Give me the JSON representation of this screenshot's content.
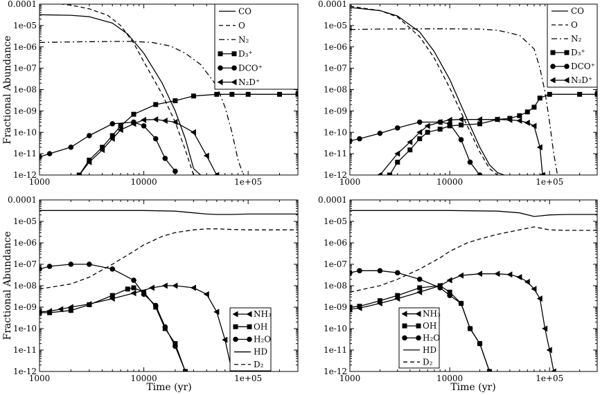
{
  "chart_data": [
    {
      "type": "line",
      "panel": "top-left",
      "xscale": "log",
      "yscale": "log",
      "xlim": [
        1000,
        300000
      ],
      "ylim": [
        1e-12,
        0.0001
      ],
      "xticklabels": [
        "1000",
        "10000",
        "1e+05"
      ],
      "yticklabels": [
        "1e-12",
        "1e-11",
        "1e-10",
        "1e-09",
        "1e-08",
        "1e-07",
        "1e-06",
        "1e-05",
        "0.0001"
      ],
      "xlabel": "",
      "ylabel": "Fractional Abundance",
      "legend_position": "top-right",
      "series": [
        {
          "name": "CO",
          "style": "solid",
          "marker": "none",
          "x": [
            1000,
            2000,
            3000,
            5000,
            7000,
            10000,
            15000,
            20000,
            25000,
            30000,
            35000
          ],
          "y": [
            3.2e-05,
            3e-05,
            2.6e-05,
            1.3e-05,
            4e-06,
            5e-07,
            2e-08,
            1e-09,
            5e-11,
            2e-12,
            1e-12
          ]
        },
        {
          "name": "O",
          "style": "dashed",
          "marker": "none",
          "x": [
            1000,
            2000,
            3000,
            4500,
            6000,
            8000,
            10000,
            15000,
            20000,
            25000,
            30000
          ],
          "y": [
            0.00013,
            9e-05,
            6e-05,
            3e-05,
            1e-05,
            1.5e-06,
            2e-07,
            6e-09,
            3e-10,
            1.5e-11,
            1e-12
          ]
        },
        {
          "name": "N₂",
          "style": "dashdot",
          "marker": "none",
          "x": [
            1000,
            2000,
            5000,
            8000,
            12000,
            18000,
            25000,
            35000,
            50000,
            60000,
            70000,
            80000,
            90000
          ],
          "y": [
            1.6e-06,
            1.7e-06,
            1.8e-06,
            1.8e-06,
            1.6e-06,
            1.1e-06,
            5e-07,
            1.5e-07,
            1.5e-08,
            1.5e-09,
            1e-10,
            5e-12,
            1e-12
          ]
        },
        {
          "name": "D₃⁺",
          "style": "solid",
          "marker": "square",
          "x": [
            2400,
            3000,
            4000,
            5000,
            6000,
            8000,
            13000,
            20000,
            30000,
            50000,
            70000,
            100000,
            200000,
            300000
          ],
          "y": [
            1e-12,
            5e-12,
            2e-11,
            7e-11,
            2e-10,
            7e-10,
            2e-09,
            3e-09,
            5e-09,
            6e-09,
            6e-09,
            6e-09,
            6e-09,
            6e-09
          ]
        },
        {
          "name": "DCO⁺",
          "style": "solid",
          "marker": "circle",
          "x": [
            1000,
            1250,
            2000,
            3000,
            5000,
            8000,
            10000,
            13000,
            16000,
            20000
          ],
          "y": [
            7e-12,
            1e-11,
            2e-11,
            7e-11,
            2.5e-10,
            3e-10,
            2e-10,
            5e-11,
            6e-12,
            1.5e-12
          ]
        },
        {
          "name": "N₂D⁺",
          "style": "solid",
          "marker": "triangle-left",
          "x": [
            2400,
            3000,
            4000,
            5000,
            6000,
            8000,
            10000,
            13000,
            16000,
            20000,
            30000,
            40000,
            50000
          ],
          "y": [
            1e-12,
            4e-12,
            1.5e-11,
            5e-11,
            1.3e-10,
            2.5e-10,
            3.8e-10,
            4e-10,
            3.5e-10,
            3e-10,
            1e-10,
            8e-12,
            1e-12
          ]
        }
      ]
    },
    {
      "type": "line",
      "panel": "top-right",
      "xscale": "log",
      "yscale": "log",
      "xlim": [
        1000,
        300000
      ],
      "ylim": [
        1e-12,
        0.0001
      ],
      "xticklabels": [
        "1000",
        "10000",
        "1e+05"
      ],
      "yticklabels": [
        "1e-12",
        "1e-11",
        "1e-10",
        "1e-09",
        "1e-08",
        "1e-07",
        "1e-06",
        "1e-05",
        "0.0001"
      ],
      "xlabel": "",
      "ylabel": "",
      "legend_position": "top-right",
      "series": [
        {
          "name": "CO",
          "style": "solid",
          "marker": "none",
          "x": [
            1000,
            2000,
            3000,
            5000,
            7000,
            10000,
            15000,
            20000,
            25000,
            30000,
            35000
          ],
          "y": [
            7e-05,
            5e-05,
            2.8e-05,
            5e-06,
            6e-07,
            3e-08,
            4e-10,
            2e-11,
            3e-12,
            1.3e-12,
            1e-12
          ]
        },
        {
          "name": "O",
          "style": "dashed",
          "marker": "none",
          "x": [
            1000,
            2000,
            3000,
            5000,
            7000,
            10000,
            15000,
            20000,
            25000,
            30000
          ],
          "y": [
            8e-05,
            5e-05,
            2.5e-05,
            3e-06,
            3e-07,
            1.2e-08,
            2e-10,
            1.2e-11,
            2e-12,
            1e-12
          ]
        },
        {
          "name": "N₂",
          "style": "dashdot",
          "marker": "none",
          "x": [
            1000,
            2000,
            5000,
            10000,
            20000,
            30000,
            50000,
            70000,
            80000,
            90000,
            100000,
            110000,
            120000
          ],
          "y": [
            6.5e-06,
            6.8e-06,
            7e-06,
            7e-06,
            6.8e-06,
            6e-06,
            3.5e-06,
            8e-07,
            1e-07,
            8e-09,
            3e-10,
            1e-11,
            1e-12
          ]
        },
        {
          "name": "D₃⁺",
          "style": "solid",
          "marker": "square",
          "x": [
            2500,
            3000,
            4000,
            5000,
            6000,
            8000,
            10000,
            13000,
            20000,
            30000,
            40000,
            50000,
            60000,
            70000,
            80000,
            100000,
            200000,
            300000
          ],
          "y": [
            1e-12,
            4e-12,
            1.5e-11,
            5e-11,
            1e-10,
            1.4e-10,
            2e-10,
            2.2e-10,
            2.5e-10,
            4e-10,
            4.5e-10,
            6e-10,
            9e-10,
            1.5e-09,
            4e-09,
            6e-09,
            6e-09,
            6e-09
          ]
        },
        {
          "name": "DCO⁺",
          "style": "solid",
          "marker": "circle",
          "x": [
            1000,
            1250,
            2000,
            3000,
            5000,
            8000,
            10000,
            13000,
            16000,
            20000
          ],
          "y": [
            4e-11,
            5e-11,
            9e-11,
            1.6e-10,
            3e-10,
            3e-10,
            2.5e-10,
            4.5e-11,
            4e-12,
            1e-12
          ]
        },
        {
          "name": "N₂D⁺",
          "style": "solid",
          "marker": "triangle-left",
          "x": [
            2000,
            3000,
            4000,
            5000,
            6000,
            8000,
            10000,
            13000,
            20000,
            30000,
            40000,
            50000,
            60000,
            70000,
            80000,
            85000
          ],
          "y": [
            1e-12,
            1e-11,
            3.5e-11,
            1e-10,
            2e-10,
            3e-10,
            3.8e-10,
            4e-10,
            4e-10,
            4e-10,
            3.8e-10,
            3.5e-10,
            2.8e-10,
            2e-10,
            2e-11,
            1e-12
          ]
        }
      ]
    },
    {
      "type": "line",
      "panel": "bottom-left",
      "xscale": "log",
      "yscale": "log",
      "xlim": [
        1000,
        300000
      ],
      "ylim": [
        1e-12,
        0.0001
      ],
      "xticklabels": [
        "1000",
        "10000",
        "1e+05"
      ],
      "yticklabels": [
        "1e-12",
        "1e-11",
        "1e-10",
        "1e-09",
        "1e-08",
        "1e-07",
        "1e-06",
        "1e-05",
        "0.0001"
      ],
      "xlabel": "Time (yr)",
      "ylabel": "Fractional Abundance",
      "legend_position": "bottom-right",
      "series": [
        {
          "name": "NH₃",
          "style": "solid",
          "marker": "triangle-left",
          "x": [
            1000,
            1250,
            1600,
            2000,
            3000,
            5000,
            8000,
            12000,
            16000,
            20000,
            30000,
            40000,
            50000,
            60000,
            70000,
            80000
          ],
          "y": [
            6e-10,
            6.5e-10,
            8e-10,
            1e-09,
            1.4e-09,
            2.5e-09,
            4.5e-09,
            8e-09,
            1e-08,
            1e-08,
            8e-09,
            4e-09,
            6e-10,
            3e-11,
            1e-12,
            1e-12
          ]
        },
        {
          "name": "OH",
          "style": "solid",
          "marker": "square",
          "x": [
            1000,
            1250,
            2000,
            3000,
            5000,
            7000,
            8000,
            10000,
            13000,
            16000,
            20000,
            25000
          ],
          "y": [
            5.5e-10,
            5.5e-10,
            7e-10,
            1.3e-09,
            3.5e-09,
            7e-09,
            8e-09,
            5e-09,
            1e-09,
            1e-10,
            2e-11,
            1e-12
          ]
        },
        {
          "name": "H₂O",
          "style": "solid",
          "marker": "circle",
          "x": [
            1000,
            1250,
            2000,
            3000,
            5000,
            8000,
            10000,
            13000,
            16000,
            20000,
            25000
          ],
          "y": [
            6e-08,
            8e-08,
            1e-07,
            1e-07,
            6e-08,
            1.8e-08,
            4e-09,
            1.2e-09,
            1.2e-10,
            1.5e-11,
            1e-12
          ]
        },
        {
          "name": "HD",
          "style": "solid",
          "marker": "none",
          "x": [
            1000,
            10000,
            20000,
            30000,
            40000,
            50000,
            70000,
            100000,
            300000
          ],
          "y": [
            3.2e-05,
            3.2e-05,
            3e-05,
            2.5e-05,
            2.2e-05,
            2.1e-05,
            2.1e-05,
            2.2e-05,
            2.2e-05
          ]
        },
        {
          "name": "D₂",
          "style": "dashed",
          "marker": "none",
          "x": [
            1000,
            2000,
            3000,
            5000,
            8000,
            10000,
            15000,
            20000,
            30000,
            40000,
            50000,
            70000,
            100000,
            300000
          ],
          "y": [
            7e-09,
            1.2e-08,
            2.5e-08,
            1e-07,
            4e-07,
            8e-07,
            2e-06,
            3e-06,
            4e-06,
            4.5e-06,
            4.5e-06,
            4.2e-06,
            4e-06,
            4e-06
          ]
        }
      ]
    },
    {
      "type": "line",
      "panel": "bottom-right",
      "xscale": "log",
      "yscale": "log",
      "xlim": [
        1000,
        300000
      ],
      "ylim": [
        1e-12,
        0.0001
      ],
      "xticklabels": [
        "1000",
        "10000",
        "1e+05"
      ],
      "yticklabels": [
        "1e-12",
        "1e-11",
        "1e-10",
        "1e-09",
        "1e-08",
        "1e-07",
        "1e-06",
        "1e-05",
        "0.0001"
      ],
      "xlabel": "Time (yr)",
      "ylabel": "",
      "legend_position": "bottom-left",
      "series": [
        {
          "name": "NH₃",
          "style": "solid",
          "marker": "triangle-left",
          "x": [
            1000,
            1250,
            2000,
            3000,
            5000,
            8000,
            10000,
            13000,
            20000,
            30000,
            40000,
            50000,
            60000,
            70000,
            80000,
            90000,
            100000,
            110000
          ],
          "y": [
            8e-10,
            9e-10,
            1.5e-09,
            2.5e-09,
            5e-09,
            1e-08,
            1.8e-08,
            3e-08,
            3.6e-08,
            3.6e-08,
            3.3e-08,
            2.5e-08,
            1.5e-08,
            7e-09,
            2.5e-09,
            1e-10,
            1e-11,
            1e-12
          ]
        },
        {
          "name": "OH",
          "style": "solid",
          "marker": "square",
          "x": [
            1000,
            1250,
            2000,
            3000,
            5000,
            8000,
            10000,
            13000,
            16000,
            20000,
            25000
          ],
          "y": [
            1e-09,
            1.1e-09,
            2e-09,
            3.5e-09,
            8e-09,
            1e-08,
            5e-09,
            1.5e-09,
            1e-10,
            2e-11,
            1e-12
          ]
        },
        {
          "name": "H₂O",
          "style": "solid",
          "marker": "circle",
          "x": [
            1000,
            1250,
            2000,
            3000,
            5000,
            8000,
            10000,
            13000,
            16000,
            20000,
            25000
          ],
          "y": [
            4e-08,
            5e-08,
            5e-08,
            4e-08,
            2e-08,
            8e-09,
            3.5e-09,
            1.5e-09,
            1e-10,
            2e-11,
            1e-12
          ]
        },
        {
          "name": "HD",
          "style": "solid",
          "marker": "none",
          "x": [
            1000,
            10000,
            30000,
            50000,
            70000,
            80000,
            100000,
            150000,
            300000
          ],
          "y": [
            3.2e-05,
            3.2e-05,
            3e-05,
            2.5e-05,
            1.7e-05,
            1.8e-05,
            2e-05,
            2.1e-05,
            2.1e-05
          ]
        },
        {
          "name": "D₂",
          "style": "dashed",
          "marker": "none",
          "x": [
            1000,
            2000,
            3000,
            5000,
            8000,
            10000,
            15000,
            20000,
            30000,
            50000,
            70000,
            100000,
            150000,
            300000
          ],
          "y": [
            5e-09,
            1e-08,
            2e-08,
            6e-08,
            2e-07,
            4e-07,
            1e-06,
            1.5e-06,
            2.5e-06,
            4e-06,
            5.5e-06,
            4e-06,
            3.8e-06,
            3.8e-06
          ]
        }
      ]
    }
  ]
}
